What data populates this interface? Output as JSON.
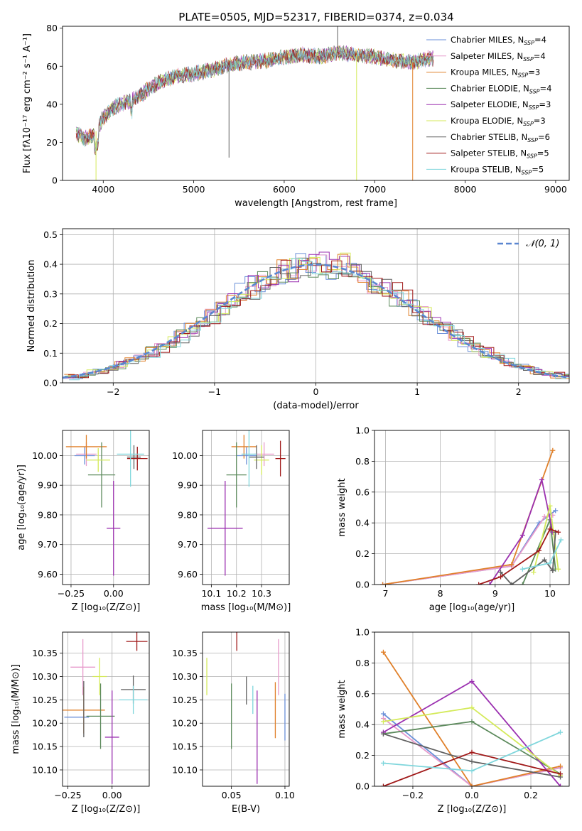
{
  "figure": {
    "title": "PLATE=0505, MJD=52317, FIBERID=0374, z=0.034"
  },
  "palette": {
    "Chabrier MILES": "#6a8fd8",
    "Salpeter MILES": "#e79acb",
    "Kroupa MILES": "#e0802a",
    "Chabrier ELODIE": "#5c8a5c",
    "Salpeter ELODIE": "#9b30b0",
    "Kroupa ELODIE": "#d4ea5a",
    "Chabrier STELIB": "#606060",
    "Salpeter STELIB": "#a01818",
    "Kroupa STELIB": "#7fd6dc"
  },
  "chart_data": [
    {
      "id": "spectrum",
      "type": "line",
      "xlabel": "wavelength [Angstrom, rest frame]",
      "ylabel": "Flux [fλ10⁻¹⁷ erg cm⁻² s⁻¹ A⁻¹]",
      "xlim": [
        3550,
        9150
      ],
      "ylim": [
        0,
        81
      ],
      "xticks": [
        4000,
        5000,
        6000,
        7000,
        8000,
        9000
      ],
      "yticks": [
        0,
        20,
        40,
        60,
        80
      ],
      "legend_position": "right",
      "data_x": [
        3700,
        3800,
        3900,
        4000,
        4100,
        4200,
        4300,
        4400,
        4500,
        4600,
        4800,
        5000,
        5200,
        5400,
        5600,
        5800,
        6000,
        6200,
        6400,
        6600,
        6800,
        7000,
        7200,
        7400,
        7600
      ],
      "data_y": [
        25,
        22,
        24,
        33,
        38,
        40,
        42,
        44,
        48,
        51,
        55,
        56,
        58,
        61,
        62,
        63,
        65,
        66,
        65,
        67,
        66,
        65,
        63,
        62,
        64
      ],
      "series": [
        {
          "name": "Chabrier MILES, Nₛₛₚ=4",
          "label_main": "Chabrier MILES, N",
          "label_sub": "SSP",
          "label_tail": "=4",
          "color": "#6a8fd8"
        },
        {
          "name": "Salpeter MILES, Nₛₛₚ=4",
          "label_main": "Salpeter MILES, N",
          "label_sub": "SSP",
          "label_tail": "=4",
          "color": "#e79acb"
        },
        {
          "name": "Kroupa MILES, Nₛₛₚ=3",
          "label_main": "Kroupa MILES, N",
          "label_sub": "SSP",
          "label_tail": "=3",
          "color": "#e0802a"
        },
        {
          "name": "Chabrier ELODIE, Nₛₛₚ=4",
          "label_main": "Chabrier ELODIE, N",
          "label_sub": "SSP",
          "label_tail": "=4",
          "color": "#5c8a5c"
        },
        {
          "name": "Salpeter ELODIE, Nₛₛₚ=3",
          "label_main": "Salpeter ELODIE, N",
          "label_sub": "SSP",
          "label_tail": "=3",
          "color": "#9b30b0"
        },
        {
          "name": "Kroupa ELODIE, Nₛₛₚ=3",
          "label_main": "Kroupa ELODIE, N",
          "label_sub": "SSP",
          "label_tail": "=3",
          "color": "#d4ea5a"
        },
        {
          "name": "Chabrier STELIB, Nₛₛₚ=6",
          "label_main": "Chabrier STELIB, N",
          "label_sub": "SSP",
          "label_tail": "=6",
          "color": "#606060"
        },
        {
          "name": "Salpeter STELIB, Nₛₛₚ=5",
          "label_main": "Salpeter STELIB, N",
          "label_sub": "SSP",
          "label_tail": "=5",
          "color": "#a01818"
        },
        {
          "name": "Kroupa STELIB, Nₛₛₚ=5",
          "label_main": "Kroupa STELIB, N",
          "label_sub": "SSP",
          "label_tail": "=5",
          "color": "#7fd6dc"
        }
      ],
      "spikes": [
        {
          "x": 3920,
          "y": 0,
          "color": "#d4ea5a"
        },
        {
          "x": 5390,
          "y": 12,
          "color": "#606060"
        },
        {
          "x": 6590,
          "y": 81,
          "color": "#606060"
        },
        {
          "x": 6800,
          "y": 0,
          "color": "#d4ea5a"
        },
        {
          "x": 7420,
          "y": 0,
          "color": "#e0802a"
        }
      ]
    },
    {
      "id": "residuals",
      "type": "histogram",
      "xlabel": "(data-model)/error",
      "ylabel": "Normed distribution",
      "xlim": [
        -2.5,
        2.5
      ],
      "ylim": [
        0,
        0.52
      ],
      "xticks": [
        -2,
        -1,
        0,
        1,
        2
      ],
      "yticks": [
        0.0,
        0.1,
        0.2,
        0.3,
        0.4,
        0.5
      ],
      "grid": true,
      "legend": "𝒩(0, 1)",
      "legend_position": "top-right",
      "bins": [
        -2.5,
        -2.4,
        -2.3,
        -2.2,
        -2.1,
        -2.0,
        -1.9,
        -1.8,
        -1.7,
        -1.6,
        -1.5,
        -1.4,
        -1.3,
        -1.2,
        -1.1,
        -1.0,
        -0.9,
        -0.8,
        -0.7,
        -0.6,
        -0.5,
        -0.4,
        -0.3,
        -0.2,
        -0.1,
        0.0,
        0.1,
        0.2,
        0.3,
        0.4,
        0.5,
        0.6,
        0.7,
        0.8,
        0.9,
        1.0,
        1.1,
        1.2,
        1.3,
        1.4,
        1.5,
        1.6,
        1.7,
        1.8,
        1.9,
        2.0,
        2.1,
        2.2,
        2.3,
        2.4
      ],
      "gauss": "normal(0,1)",
      "hist_colors": [
        "#6a8fd8",
        "#e79acb",
        "#e0802a",
        "#5c8a5c",
        "#9b30b0",
        "#d4ea5a",
        "#606060",
        "#a01818",
        "#7fd6dc"
      ]
    },
    {
      "id": "z-age",
      "type": "scatter",
      "xlabel": "Z [log₁₀(Z/Z⊙)]",
      "ylabel": "age  [log₁₀(age/yr)]",
      "xlim": [
        -0.3,
        0.21
      ],
      "ylim": [
        9.565,
        10.085
      ],
      "xticks": [
        -0.25,
        0.0
      ],
      "xticklabels": [
        "−0.25",
        "0.00"
      ],
      "yticks": [
        9.6,
        9.7,
        9.8,
        9.9,
        10.0
      ],
      "points": [
        {
          "x": -0.17,
          "y": 10.0,
          "xerr": 0.06,
          "yerr": 0.03,
          "color": "#6a8fd8"
        },
        {
          "x": -0.16,
          "y": 10.005,
          "xerr": 0.06,
          "yerr": 0.04,
          "color": "#e79acb"
        },
        {
          "x": -0.16,
          "y": 10.03,
          "xerr": 0.12,
          "yerr": 0.04,
          "color": "#e0802a"
        },
        {
          "x": -0.07,
          "y": 9.935,
          "xerr": 0.08,
          "yerr": 0.11,
          "color": "#5c8a5c"
        },
        {
          "x": 0.0,
          "y": 9.755,
          "xerr": 0.04,
          "yerr": 0.16,
          "color": "#9b30b0"
        },
        {
          "x": -0.09,
          "y": 9.985,
          "xerr": 0.07,
          "yerr": 0.04,
          "color": "#d4ea5a"
        },
        {
          "x": 0.12,
          "y": 9.995,
          "xerr": 0.04,
          "yerr": 0.04,
          "color": "#606060"
        },
        {
          "x": 0.14,
          "y": 9.99,
          "xerr": 0.06,
          "yerr": 0.04,
          "color": "#a01818"
        },
        {
          "x": 0.1,
          "y": 10.005,
          "xerr": 0.08,
          "yerr": 0.11,
          "color": "#7fd6dc"
        }
      ]
    },
    {
      "id": "mass-age",
      "type": "scatter",
      "xlabel": "mass [log₁₀(M/M⊙)]",
      "ylabel": "",
      "xlim": [
        10.065,
        10.41
      ],
      "ylim": [
        9.565,
        10.085
      ],
      "xticks": [
        10.1,
        10.2,
        10.3
      ],
      "xticklabels": [
        "10.1",
        "10.2",
        "10.3"
      ],
      "yticks": [
        9.6,
        9.7,
        9.8,
        9.9,
        10.0
      ],
      "points": [
        {
          "x": 10.24,
          "y": 10.0,
          "xerr": 0.04,
          "yerr": 0.03,
          "color": "#6a8fd8"
        },
        {
          "x": 10.31,
          "y": 10.005,
          "xerr": 0.04,
          "yerr": 0.04,
          "color": "#e79acb"
        },
        {
          "x": 10.23,
          "y": 10.03,
          "xerr": 0.05,
          "yerr": 0.04,
          "color": "#e0802a"
        },
        {
          "x": 10.2,
          "y": 9.935,
          "xerr": 0.04,
          "yerr": 0.11,
          "color": "#5c8a5c"
        },
        {
          "x": 10.155,
          "y": 9.755,
          "xerr": 0.07,
          "yerr": 0.16,
          "color": "#9b30b0"
        },
        {
          "x": 10.3,
          "y": 9.985,
          "xerr": 0.03,
          "yerr": 0.05,
          "color": "#d4ea5a"
        },
        {
          "x": 10.28,
          "y": 9.995,
          "xerr": 0.03,
          "yerr": 0.04,
          "color": "#606060"
        },
        {
          "x": 10.375,
          "y": 9.99,
          "xerr": 0.02,
          "yerr": 0.06,
          "color": "#a01818"
        },
        {
          "x": 10.25,
          "y": 10.005,
          "xerr": 0.03,
          "yerr": 0.11,
          "color": "#7fd6dc"
        }
      ]
    },
    {
      "id": "age-weight",
      "type": "line",
      "xlabel": "age  [log₁₀(age/yr)]",
      "ylabel": "mass weight",
      "xlim": [
        6.8,
        10.35
      ],
      "ylim": [
        0,
        1
      ],
      "xticks": [
        7,
        8,
        9,
        10
      ],
      "yticks": [
        0.0,
        0.2,
        0.4,
        0.6,
        0.8,
        1.0
      ],
      "grid": true,
      "series": [
        {
          "color": "#6a8fd8",
          "x": [
            6.95,
            9.3,
            9.8,
            10.1
          ],
          "y": [
            0.0,
            0.12,
            0.4,
            0.48
          ]
        },
        {
          "color": "#e79acb",
          "x": [
            6.95,
            9.3,
            9.9,
            10.05
          ],
          "y": [
            0.0,
            0.12,
            0.44,
            0.45
          ]
        },
        {
          "color": "#e0802a",
          "x": [
            6.95,
            9.3,
            10.05
          ],
          "y": [
            0.0,
            0.13,
            0.87
          ]
        },
        {
          "color": "#5c8a5c",
          "x": [
            9.5,
            10.0,
            10.1
          ],
          "y": [
            0.0,
            0.42,
            0.1
          ]
        },
        {
          "color": "#9b30b0",
          "x": [
            8.9,
            9.5,
            9.85,
            10.05
          ],
          "y": [
            0.0,
            0.32,
            0.68,
            0.34
          ]
        },
        {
          "color": "#d4ea5a",
          "x": [
            9.7,
            10.0,
            10.15
          ],
          "y": [
            0.08,
            0.51,
            0.1
          ]
        },
        {
          "color": "#606060",
          "x": [
            9.1,
            9.3,
            9.9,
            10.05,
            10.1
          ],
          "y": [
            0.08,
            0.0,
            0.16,
            0.09,
            0.34
          ]
        },
        {
          "color": "#a01818",
          "x": [
            8.7,
            9.1,
            9.8,
            10.0,
            10.15
          ],
          "y": [
            0.0,
            0.05,
            0.22,
            0.36,
            0.34
          ]
        },
        {
          "color": "#7fd6dc",
          "x": [
            9.5,
            10.0,
            10.2
          ],
          "y": [
            0.1,
            0.14,
            0.29
          ]
        }
      ]
    },
    {
      "id": "z-mass",
      "type": "scatter",
      "xlabel": "Z [log₁₀(Z/Z⊙)]",
      "ylabel": "mass [log₁₀(M/M⊙)]",
      "xlim": [
        -0.28,
        0.21
      ],
      "ylim": [
        10.065,
        10.395
      ],
      "xticks": [
        -0.25,
        0.0
      ],
      "xticklabels": [
        "−0.25",
        "0.00"
      ],
      "yticks": [
        10.1,
        10.15,
        10.2,
        10.25,
        10.3,
        10.35
      ],
      "points": [
        {
          "x": -0.2,
          "y": 10.213,
          "xerr": 0.07,
          "yerr": 0.0,
          "color": "#6a8fd8"
        },
        {
          "x": -0.165,
          "y": 10.32,
          "xerr": 0.07,
          "yerr": 0.06,
          "color": "#e79acb"
        },
        {
          "x": -0.16,
          "y": 10.228,
          "xerr": 0.12,
          "yerr": 0.05,
          "color": "#e0802a"
        },
        {
          "x": -0.065,
          "y": 10.215,
          "xerr": 0.08,
          "yerr": 0.07,
          "color": "#5c8a5c"
        },
        {
          "x": 0.0,
          "y": 10.17,
          "xerr": 0.04,
          "yerr": 0.1,
          "color": "#9b30b0"
        },
        {
          "x": -0.07,
          "y": 10.3,
          "xerr": 0.04,
          "yerr": 0.04,
          "color": "#d4ea5a"
        },
        {
          "x": 0.12,
          "y": 10.272,
          "xerr": 0.07,
          "yerr": 0.03,
          "color": "#606060"
        },
        {
          "x": 0.14,
          "y": 10.375,
          "xerr": 0.06,
          "yerr": 0.02,
          "color": "#a01818"
        },
        {
          "x": 0.12,
          "y": 10.25,
          "xerr": 0.08,
          "yerr": 0.03,
          "color": "#7fd6dc"
        },
        {
          "x": -0.16,
          "y": 10.23,
          "xerr": 0.0,
          "yerr": 0.06,
          "color": "#606060"
        }
      ]
    },
    {
      "id": "ebv-mass",
      "type": "scatter",
      "xlabel": "E(B-V)",
      "ylabel": "",
      "xlim": [
        0.023,
        0.104
      ],
      "ylim": [
        10.065,
        10.395
      ],
      "xticks": [
        0.05,
        0.1
      ],
      "xticklabels": [
        "0.05",
        "0.10"
      ],
      "yticks": [
        10.1,
        10.15,
        10.2,
        10.25,
        10.3,
        10.35
      ],
      "points": [
        {
          "x": 0.1,
          "y": 10.213,
          "xerr": 0,
          "yerr": 0.05,
          "color": "#6a8fd8"
        },
        {
          "x": 0.094,
          "y": 10.32,
          "xerr": 0,
          "yerr": 0.06,
          "color": "#e79acb"
        },
        {
          "x": 0.091,
          "y": 10.228,
          "xerr": 0,
          "yerr": 0.06,
          "color": "#e0802a"
        },
        {
          "x": 0.05,
          "y": 10.215,
          "xerr": 0,
          "yerr": 0.07,
          "color": "#5c8a5c"
        },
        {
          "x": 0.074,
          "y": 10.17,
          "xerr": 0,
          "yerr": 0.1,
          "color": "#9b30b0"
        },
        {
          "x": 0.027,
          "y": 10.3,
          "xerr": 0,
          "yerr": 0.04,
          "color": "#d4ea5a"
        },
        {
          "x": 0.064,
          "y": 10.27,
          "xerr": 0,
          "yerr": 0.03,
          "color": "#606060"
        },
        {
          "x": 0.055,
          "y": 10.375,
          "xerr": 0,
          "yerr": 0.02,
          "color": "#a01818"
        },
        {
          "x": 0.07,
          "y": 10.25,
          "xerr": 0,
          "yerr": 0.03,
          "color": "#7fd6dc"
        }
      ]
    },
    {
      "id": "z-weight",
      "type": "line",
      "xlabel": "Z [log₁₀(Z/Z⊙)]",
      "ylabel": "mass weight",
      "xlim": [
        -0.33,
        0.33
      ],
      "ylim": [
        0,
        1
      ],
      "xticks": [
        -0.2,
        0.0,
        0.2
      ],
      "xticklabels": [
        "−0.2",
        "0.0",
        "0.2"
      ],
      "yticks": [
        0.0,
        0.2,
        0.4,
        0.6,
        0.8,
        1.0
      ],
      "grid": true,
      "series": [
        {
          "color": "#6a8fd8",
          "x": [
            -0.3,
            0.0,
            0.3
          ],
          "y": [
            0.47,
            0.0,
            0.12
          ]
        },
        {
          "color": "#e79acb",
          "x": [
            -0.3,
            0.0,
            0.3
          ],
          "y": [
            0.44,
            0.0,
            0.12
          ]
        },
        {
          "color": "#e0802a",
          "x": [
            -0.3,
            0.0,
            0.3
          ],
          "y": [
            0.87,
            0.0,
            0.13
          ]
        },
        {
          "color": "#5c8a5c",
          "x": [
            -0.3,
            0.0,
            0.3
          ],
          "y": [
            0.34,
            0.42,
            0.08
          ]
        },
        {
          "color": "#9b30b0",
          "x": [
            -0.3,
            0.0,
            0.3
          ],
          "y": [
            0.35,
            0.68,
            0.0
          ]
        },
        {
          "color": "#d4ea5a",
          "x": [
            -0.3,
            0.0,
            0.3
          ],
          "y": [
            0.42,
            0.51,
            0.07
          ]
        },
        {
          "color": "#606060",
          "x": [
            -0.3,
            0.0,
            0.3
          ],
          "y": [
            0.34,
            0.16,
            0.06
          ]
        },
        {
          "color": "#a01818",
          "x": [
            -0.3,
            0.0,
            0.3
          ],
          "y": [
            0.0,
            0.22,
            0.08
          ]
        },
        {
          "color": "#7fd6dc",
          "x": [
            -0.3,
            0.0,
            0.3
          ],
          "y": [
            0.15,
            0.1,
            0.35
          ]
        }
      ]
    }
  ]
}
